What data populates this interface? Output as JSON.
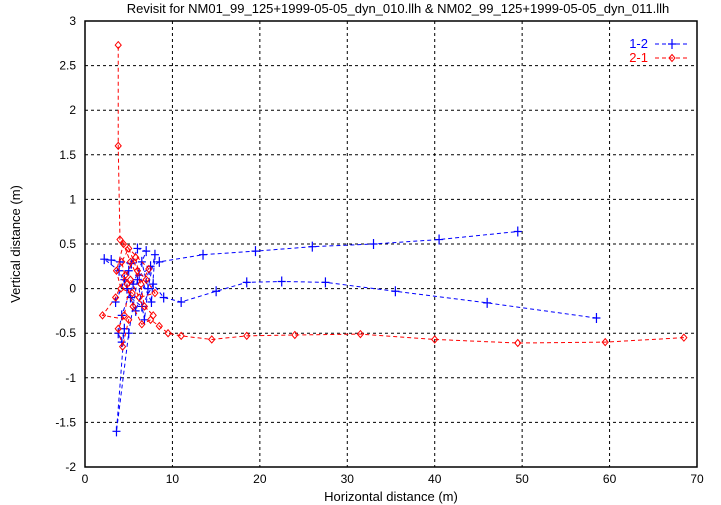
{
  "chart_data": {
    "type": "line",
    "title": "Revisit for NM01_99_125+1999-05-05_dyn_010.llh & NM02_99_125+1999-05-05_dyn_011.llh",
    "xlabel": "Horizontal distance (m)",
    "ylabel": "Vertical distance (m)",
    "xlim": [
      0,
      70
    ],
    "ylim": [
      -2,
      3
    ],
    "xticks": [
      "0",
      "10",
      "20",
      "30",
      "40",
      "50",
      "60",
      "70"
    ],
    "yticks": [
      "-2",
      "-1.5",
      "-1",
      "-0.5",
      "0",
      "0.5",
      "1",
      "1.5",
      "2",
      "2.5",
      "3"
    ],
    "grid": true,
    "legend_position": "top-right",
    "series": [
      {
        "name": "1-2",
        "color": "#0000ff",
        "marker": "plus",
        "points": [
          [
            58.5,
            -0.33
          ],
          [
            46,
            -0.16
          ],
          [
            35.5,
            -0.03
          ],
          [
            27.5,
            0.07
          ],
          [
            22.5,
            0.08
          ],
          [
            18.5,
            0.07
          ],
          [
            15,
            -0.03
          ],
          [
            11,
            -0.15
          ],
          [
            9,
            -0.1
          ],
          [
            7.8,
            0.05
          ],
          [
            6.5,
            -0.2
          ],
          [
            5.2,
            -0.1
          ],
          [
            4.5,
            0.1
          ],
          [
            3.5,
            -0.15
          ],
          [
            5,
            0.2
          ],
          [
            6,
            0.45
          ],
          [
            7,
            0.42
          ],
          [
            5.5,
            0.05
          ],
          [
            4.2,
            -0.3
          ],
          [
            3.8,
            -0.5
          ],
          [
            4.2,
            -0.6
          ],
          [
            4.5,
            -0.45
          ],
          [
            3.6,
            -1.6
          ],
          [
            5,
            -0.5
          ],
          [
            6,
            0.1
          ],
          [
            6.8,
            -0.35
          ],
          [
            7.5,
            0.25
          ],
          [
            5.8,
            -0.25
          ],
          [
            4.8,
            0.0
          ],
          [
            3.9,
            0.2
          ],
          [
            2.2,
            0.33
          ],
          [
            3,
            0.32
          ],
          [
            4,
            0.3
          ],
          [
            5.3,
            0.28
          ],
          [
            6.5,
            0.3
          ],
          [
            7.2,
            0.0
          ],
          [
            8,
            0.38
          ],
          [
            7.6,
            -0.15
          ],
          [
            6.2,
            0.15
          ],
          [
            8.5,
            0.3
          ],
          [
            13.5,
            0.38
          ],
          [
            19.5,
            0.42
          ],
          [
            26,
            0.47
          ],
          [
            33,
            0.5
          ],
          [
            40.5,
            0.55
          ],
          [
            49.5,
            0.64
          ]
        ]
      },
      {
        "name": "2-1",
        "color": "#ff0000",
        "marker": "diamond",
        "points": [
          [
            68.5,
            -0.55
          ],
          [
            59.5,
            -0.6
          ],
          [
            49.5,
            -0.61
          ],
          [
            40,
            -0.57
          ],
          [
            31.5,
            -0.51
          ],
          [
            24,
            -0.52
          ],
          [
            18.5,
            -0.53
          ],
          [
            14.5,
            -0.57
          ],
          [
            11,
            -0.53
          ],
          [
            9.5,
            -0.5
          ],
          [
            8.5,
            -0.42
          ],
          [
            7.5,
            -0.35
          ],
          [
            6.5,
            -0.4
          ],
          [
            5.5,
            -0.2
          ],
          [
            4.8,
            0.05
          ],
          [
            4.2,
            0.3
          ],
          [
            5,
            0.45
          ],
          [
            6,
            0.2
          ],
          [
            7,
            0.1
          ],
          [
            8,
            -0.05
          ],
          [
            6.2,
            -0.1
          ],
          [
            5.2,
            0.1
          ],
          [
            4.5,
            -0.3
          ],
          [
            3.8,
            -0.45
          ],
          [
            4.3,
            -0.65
          ],
          [
            5,
            -0.35
          ],
          [
            2,
            -0.3
          ],
          [
            3.5,
            -0.1
          ],
          [
            4.6,
            0.15
          ],
          [
            5.8,
            0.35
          ],
          [
            6.8,
            -0.2
          ],
          [
            7.8,
            -0.3
          ],
          [
            5.4,
            -0.05
          ],
          [
            4.1,
            0.0
          ],
          [
            3.6,
            0.2
          ],
          [
            4.4,
            0.5
          ],
          [
            5.2,
            0.3
          ],
          [
            6.4,
            0.05
          ],
          [
            7.3,
            0.22
          ],
          [
            4,
            0.55
          ],
          [
            3.8,
            1.6
          ],
          [
            3.8,
            2.73
          ]
        ]
      }
    ]
  }
}
